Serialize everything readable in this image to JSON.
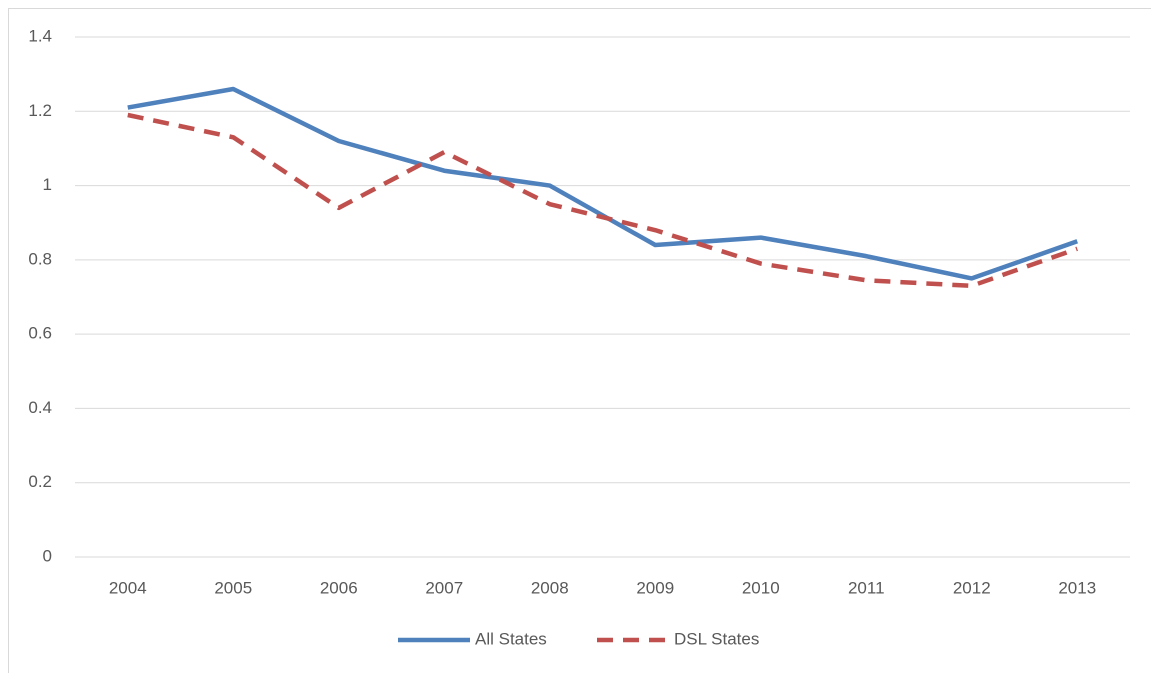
{
  "chart_data": {
    "type": "line",
    "categories": [
      "2004",
      "2005",
      "2006",
      "2007",
      "2008",
      "2009",
      "2010",
      "2011",
      "2012",
      "2013"
    ],
    "series": [
      {
        "name": "All States",
        "color": "#4f81bd",
        "dash": false,
        "values": [
          1.21,
          1.26,
          1.12,
          1.04,
          1.0,
          0.84,
          0.86,
          0.81,
          0.75,
          0.85
        ]
      },
      {
        "name": "DSL States",
        "color": "#c0504d",
        "dash": true,
        "values": [
          1.19,
          1.13,
          0.94,
          1.09,
          0.95,
          0.88,
          0.79,
          0.745,
          0.73,
          0.83
        ]
      }
    ],
    "ylim": [
      0,
      1.4
    ],
    "yticks": [
      0,
      0.2,
      0.4,
      0.6,
      0.8,
      1,
      1.2,
      1.4
    ],
    "grid": true,
    "legend": "bottom"
  }
}
